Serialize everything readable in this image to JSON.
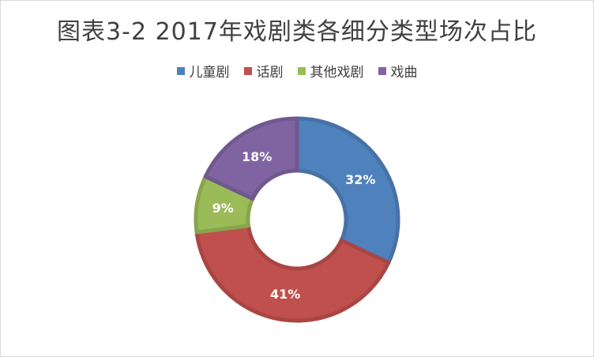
{
  "chart_data": {
    "type": "pie",
    "title": "图表3-2   2017年戏剧类各细分类型场次占比",
    "categories": [
      "儿童剧",
      "话剧",
      "其他戏剧",
      "戏曲"
    ],
    "values": [
      32,
      41,
      9,
      18
    ],
    "labels": [
      "32%",
      "41%",
      "9%",
      "18%"
    ],
    "colors": [
      "#4f81bd",
      "#c0504d",
      "#9bbb59",
      "#8064a2"
    ],
    "legend_position": "top",
    "donut": true
  }
}
